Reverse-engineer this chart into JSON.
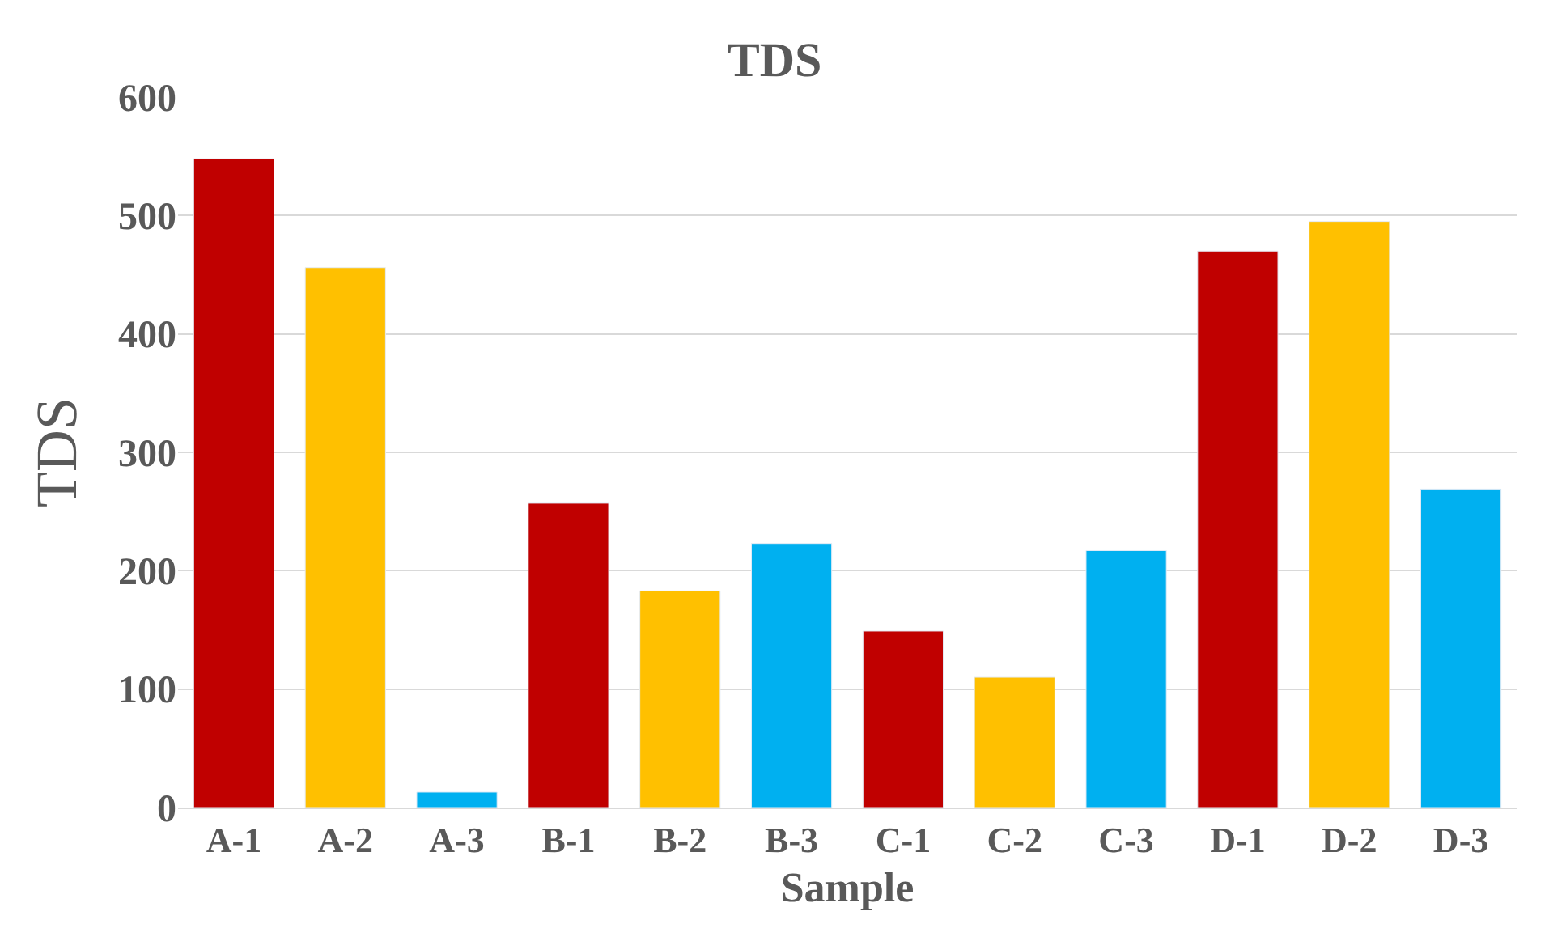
{
  "chart_data": {
    "type": "bar",
    "title": "TDS",
    "xlabel": "Sample",
    "ylabel": "TDS",
    "categories": [
      "A-1",
      "A-2",
      "A-3",
      "B-1",
      "B-2",
      "B-3",
      "C-1",
      "C-2",
      "C-3",
      "D-1",
      "D-2",
      "D-3"
    ],
    "values": [
      548,
      456,
      13,
      257,
      183,
      223,
      149,
      110,
      217,
      470,
      495,
      269
    ],
    "colors": [
      "#c00000",
      "#ffc000",
      "#00b0f0",
      "#c00000",
      "#ffc000",
      "#00b0f0",
      "#c00000",
      "#ffc000",
      "#00b0f0",
      "#c00000",
      "#ffc000",
      "#00b0f0"
    ],
    "ylim": [
      0,
      600
    ],
    "yticks": [
      0,
      100,
      200,
      300,
      400,
      500,
      600
    ],
    "grid": "y"
  }
}
